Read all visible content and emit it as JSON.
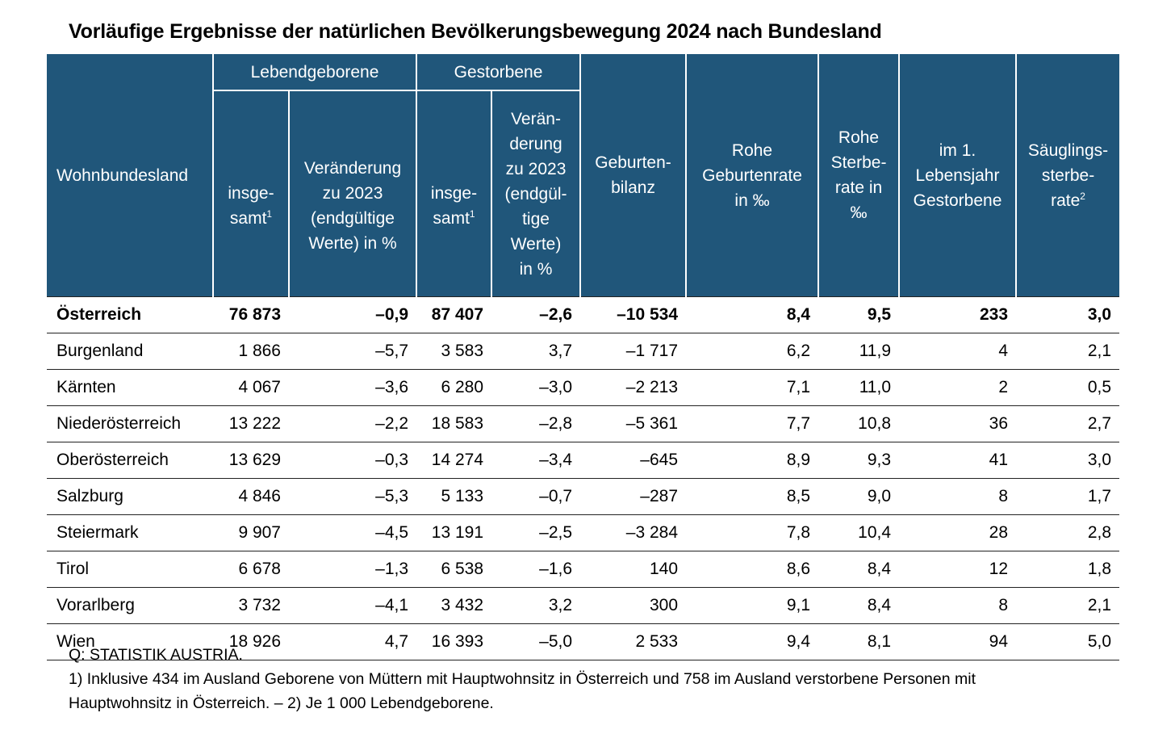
{
  "title": "Vorläufige Ergebnisse der natürlichen Bevölkerungsbewegung 2024 nach Bundesland",
  "header": {
    "wohnbundesland": "Wohnbundesland",
    "group_lebend": "Lebendgeborene",
    "group_gestorbene": "Gestorbene",
    "lebend_insgesamt": "insge-\nsamt",
    "lebend_insgesamt_sup": "1",
    "lebend_veraenderung": "Veränderung\nzu 2023\n(endgültige\nWerte) in %",
    "gest_insgesamt": "insge-\nsamt",
    "gest_insgesamt_sup": "1",
    "gest_veraenderung": "Verän-\nderung\nzu 2023\n(endgül-\ntige\nWerte)\nin %",
    "geburtenbilanz": "Geburten-\nbilanz",
    "rohe_geburtenrate": "Rohe\nGeburtenrate\nin ‰",
    "rohe_sterberate": "Rohe\nSterbe-\nrate in\n‰",
    "im1_lebensjahr": "im 1.\nLebensjahr\nGestorbene",
    "saeuglings": "Säuglings-\nsterbe-\nrate",
    "saeuglings_sup": "2"
  },
  "rows": [
    {
      "name": "Österreich",
      "cells": [
        "76 873",
        "–0,9",
        "87 407",
        "–2,6",
        "–10 534",
        "8,4",
        "9,5",
        "233",
        "3,0"
      ]
    },
    {
      "name": "Burgenland",
      "cells": [
        "1 866",
        "–5,7",
        "3 583",
        "3,7",
        "–1 717",
        "6,2",
        "11,9",
        "4",
        "2,1"
      ]
    },
    {
      "name": "Kärnten",
      "cells": [
        "4 067",
        "–3,6",
        "6 280",
        "–3,0",
        "–2 213",
        "7,1",
        "11,0",
        "2",
        "0,5"
      ]
    },
    {
      "name": "Niederösterreich",
      "cells": [
        "13 222",
        "–2,2",
        "18 583",
        "–2,8",
        "–5 361",
        "7,7",
        "10,8",
        "36",
        "2,7"
      ]
    },
    {
      "name": "Oberösterreich",
      "cells": [
        "13 629",
        "–0,3",
        "14 274",
        "–3,4",
        "–645",
        "8,9",
        "9,3",
        "41",
        "3,0"
      ]
    },
    {
      "name": "Salzburg",
      "cells": [
        "4 846",
        "–5,3",
        "5 133",
        "–0,7",
        "–287",
        "8,5",
        "9,0",
        "8",
        "1,7"
      ]
    },
    {
      "name": "Steiermark",
      "cells": [
        "9 907",
        "–4,5",
        "13 191",
        "–2,5",
        "–3 284",
        "7,8",
        "10,4",
        "28",
        "2,8"
      ]
    },
    {
      "name": "Tirol",
      "cells": [
        "6 678",
        "–1,3",
        "6 538",
        "–1,6",
        "140",
        "8,6",
        "8,4",
        "12",
        "1,8"
      ]
    },
    {
      "name": "Vorarlberg",
      "cells": [
        "3 732",
        "–4,1",
        "3 432",
        "3,2",
        "300",
        "9,1",
        "8,4",
        "8",
        "2,1"
      ]
    },
    {
      "name": "Wien",
      "cells": [
        "18 926",
        "4,7",
        "16 393",
        "–5,0",
        "2 533",
        "9,4",
        "8,1",
        "94",
        "5,0"
      ]
    }
  ],
  "footer": {
    "source": "Q: STATISTIK AUSTRIA.",
    "note_line1": "1) Inklusive 434 im Ausland Geborene von Müttern mit Hauptwohnsitz in Österreich und 758 im Ausland verstorbene Personen mit",
    "note_line2": "Hauptwohnsitz in Österreich. – 2) Je 1 000 Lebendgeborene."
  }
}
